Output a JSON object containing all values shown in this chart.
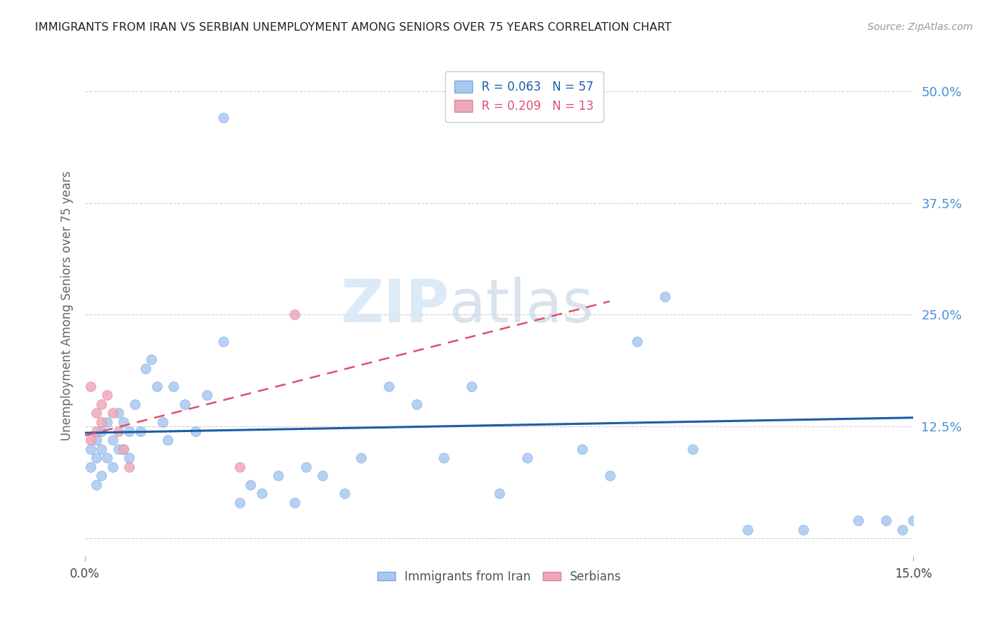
{
  "title": "IMMIGRANTS FROM IRAN VS SERBIAN UNEMPLOYMENT AMONG SENIORS OVER 75 YEARS CORRELATION CHART",
  "source": "Source: ZipAtlas.com",
  "ylabel": "Unemployment Among Seniors over 75 years",
  "xlim": [
    0.0,
    0.15
  ],
  "ylim": [
    -0.02,
    0.54
  ],
  "y_ticks": [
    0.0,
    0.125,
    0.25,
    0.375,
    0.5
  ],
  "y_tick_labels": [
    "",
    "12.5%",
    "25.0%",
    "37.5%",
    "50.0%"
  ],
  "x_tick_positions": [
    0.0,
    0.15
  ],
  "x_tick_labels": [
    "0.0%",
    "15.0%"
  ],
  "legend_labels_bottom": [
    "Immigrants from Iran",
    "Serbians"
  ],
  "iran_scatter_x": [
    0.001,
    0.001,
    0.002,
    0.002,
    0.002,
    0.003,
    0.003,
    0.003,
    0.004,
    0.004,
    0.005,
    0.005,
    0.006,
    0.006,
    0.007,
    0.007,
    0.008,
    0.008,
    0.009,
    0.01,
    0.011,
    0.012,
    0.013,
    0.014,
    0.015,
    0.016,
    0.018,
    0.02,
    0.022,
    0.025,
    0.028,
    0.03,
    0.032,
    0.035,
    0.038,
    0.04,
    0.043,
    0.047,
    0.05,
    0.055,
    0.06,
    0.065,
    0.07,
    0.075,
    0.08,
    0.09,
    0.095,
    0.1,
    0.105,
    0.11,
    0.12,
    0.13,
    0.14,
    0.145,
    0.148,
    0.15,
    0.025
  ],
  "iran_scatter_y": [
    0.1,
    0.08,
    0.11,
    0.09,
    0.06,
    0.12,
    0.1,
    0.07,
    0.13,
    0.09,
    0.11,
    0.08,
    0.14,
    0.1,
    0.13,
    0.1,
    0.12,
    0.09,
    0.15,
    0.12,
    0.19,
    0.2,
    0.17,
    0.13,
    0.11,
    0.17,
    0.15,
    0.12,
    0.16,
    0.22,
    0.04,
    0.06,
    0.05,
    0.07,
    0.04,
    0.08,
    0.07,
    0.05,
    0.09,
    0.17,
    0.15,
    0.09,
    0.17,
    0.05,
    0.09,
    0.1,
    0.07,
    0.22,
    0.27,
    0.1,
    0.01,
    0.01,
    0.02,
    0.02,
    0.01,
    0.02,
    0.47
  ],
  "serbian_scatter_x": [
    0.001,
    0.001,
    0.002,
    0.002,
    0.003,
    0.003,
    0.004,
    0.005,
    0.006,
    0.007,
    0.008,
    0.028,
    0.038
  ],
  "serbian_scatter_y": [
    0.17,
    0.11,
    0.14,
    0.12,
    0.15,
    0.13,
    0.16,
    0.14,
    0.12,
    0.1,
    0.08,
    0.08,
    0.25
  ],
  "iran_line_x": [
    0.0,
    0.15
  ],
  "iran_line_y": [
    0.118,
    0.135
  ],
  "serbian_line_x": [
    0.0,
    0.095
  ],
  "serbian_line_y": [
    0.115,
    0.265
  ],
  "scatter_size": 100,
  "iran_color": "#a8c8f0",
  "serbian_color": "#f0a8b8",
  "iran_line_color": "#1a5fa8",
  "serbian_line_color": "#e05070",
  "background_color": "#ffffff",
  "grid_color": "#cccccc",
  "title_color": "#222222",
  "axis_label_color": "#666666",
  "right_tick_color": "#4a90d9",
  "watermark_part1": "ZIP",
  "watermark_part2": "atlas",
  "legend_r1": "R = 0.063",
  "legend_n1": "N = 57",
  "legend_r2": "R = 0.209",
  "legend_n2": "N = 13"
}
